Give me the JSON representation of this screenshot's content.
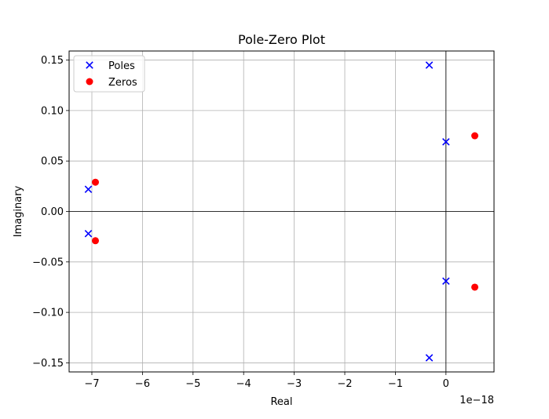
{
  "chart_data": {
    "type": "scatter",
    "title": "Pole-Zero Plot",
    "xlabel": "Real",
    "ylabel": "Imaginary",
    "x_offset_label": "1e−18",
    "xlim": [
      -7.45,
      0.95
    ],
    "ylim": [
      -0.159,
      0.159
    ],
    "x_ticks": [
      -7,
      -6,
      -5,
      -4,
      -3,
      -2,
      -1,
      0
    ],
    "x_tick_labels": [
      "−7",
      "−6",
      "−5",
      "−4",
      "−3",
      "−2",
      "−1",
      "0"
    ],
    "y_ticks": [
      -0.15,
      -0.1,
      -0.05,
      0.0,
      0.05,
      0.1,
      0.15
    ],
    "y_tick_labels": [
      "−0.15",
      "−0.10",
      "−0.05",
      "0.00",
      "0.05",
      "0.10",
      "0.15"
    ],
    "grid": true,
    "reference_lines": [
      "x=0",
      "y=0"
    ],
    "legend_position": "upper-left",
    "series": [
      {
        "name": "Poles",
        "marker": "x",
        "color": "#0000ff",
        "points": [
          {
            "x": -0.33,
            "y": 0.145
          },
          {
            "x": -0.33,
            "y": -0.145
          },
          {
            "x": 0.0,
            "y": 0.069
          },
          {
            "x": 0.0,
            "y": -0.069
          },
          {
            "x": -7.07,
            "y": 0.022
          },
          {
            "x": -7.07,
            "y": -0.022
          }
        ]
      },
      {
        "name": "Zeros",
        "marker": "o",
        "color": "#ff0000",
        "points": [
          {
            "x": 0.57,
            "y": 0.075
          },
          {
            "x": 0.57,
            "y": -0.075
          },
          {
            "x": -6.93,
            "y": 0.029
          },
          {
            "x": -6.93,
            "y": -0.029
          }
        ]
      }
    ]
  }
}
